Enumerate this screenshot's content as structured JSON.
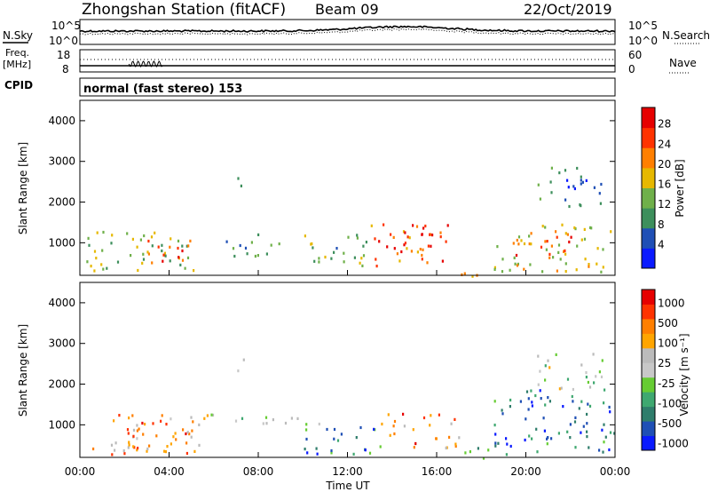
{
  "header": {
    "station": "Zhongshan Station (fitACF)",
    "beam": "Beam 09",
    "date": "22/Oct/2019"
  },
  "noise_panel": {
    "left_label": "N.Sky",
    "left_top_tick": "10^5",
    "left_bottom_tick": "10^0",
    "right_label": "N.Search",
    "right_top_tick": "10^5",
    "right_bottom_tick": "10^0"
  },
  "freq_panel": {
    "left_label_1": "Freq.",
    "left_label_2": "[MHz]",
    "left_top_tick": "18",
    "left_bottom_tick": "8",
    "right_label": "Nave",
    "right_top_tick": "60",
    "right_bottom_tick": "0",
    "cpid_label": "CPID"
  },
  "mode_text": "normal (fast stereo) 153",
  "colors": {
    "power_scale": [
      "#0a1aff",
      "#1f4fb5",
      "#3d8f5c",
      "#6fb04a",
      "#e6b800",
      "#ff7f00",
      "#ff3300",
      "#e60000"
    ],
    "velocity_scale": [
      "#0a1aff",
      "#1f4fb5",
      "#2f7d6b",
      "#3fa870",
      "#66cc33",
      "#c8c8c8",
      "#bbbbbb",
      "#ffa500",
      "#ff7f00",
      "#ff3300",
      "#e60000"
    ]
  },
  "chart_data": [
    {
      "type": "heatmap",
      "ylabel": "Slant Range [km]",
      "ylim": [
        200,
        4500
      ],
      "yticks": [
        "1000",
        "2000",
        "3000",
        "4000"
      ],
      "xlim_hours": [
        0,
        24
      ],
      "colorbar": {
        "label": "Power [dB]",
        "ticks": [
          "4",
          "8",
          "12",
          "16",
          "20",
          "24",
          "28"
        ],
        "range": [
          0,
          32
        ]
      },
      "blobs": [
        {
          "t0": 0.2,
          "t1": 5.5,
          "r0": 300,
          "r1": 1300,
          "level": 0.45
        },
        {
          "t0": 2.5,
          "t1": 5.0,
          "r0": 500,
          "r1": 1100,
          "level": 0.8
        },
        {
          "t0": 6.5,
          "t1": 9.0,
          "r0": 700,
          "r1": 1300,
          "level": 0.3
        },
        {
          "t0": 10.0,
          "t1": 13.0,
          "r0": 400,
          "r1": 1300,
          "level": 0.4
        },
        {
          "t0": 13.0,
          "t1": 16.5,
          "r0": 300,
          "r1": 1500,
          "level": 0.75
        },
        {
          "t0": 14.5,
          "t1": 16.0,
          "r0": 700,
          "r1": 1300,
          "level": 0.95
        },
        {
          "t0": 16.5,
          "t1": 18.0,
          "r0": 200,
          "r1": 500,
          "level": 0.7
        },
        {
          "t0": 18.5,
          "t1": 24.0,
          "r0": 300,
          "r1": 1500,
          "level": 0.55
        },
        {
          "t0": 19.5,
          "t1": 22.0,
          "r0": 700,
          "r1": 1300,
          "level": 0.75
        },
        {
          "t0": 20.5,
          "t1": 23.5,
          "r0": 1900,
          "r1": 2900,
          "level": 0.25
        },
        {
          "t0": 6.8,
          "t1": 7.5,
          "r0": 2300,
          "r1": 2700,
          "level": 0.25
        }
      ]
    },
    {
      "type": "heatmap",
      "ylabel": "Slant Range [km]",
      "xlabel": "Time UT",
      "ylim": [
        200,
        4500
      ],
      "yticks": [
        "1000",
        "2000",
        "3000",
        "4000"
      ],
      "xticks": [
        "00:00",
        "04:00",
        "08:00",
        "12:00",
        "16:00",
        "20:00",
        "00:00"
      ],
      "xlim_hours": [
        0,
        24
      ],
      "colorbar": {
        "label": "Velocity [m s⁻¹]",
        "ticks": [
          "1000",
          "500",
          "100",
          "25",
          "-25",
          "-100",
          "-500",
          "-1000"
        ],
        "range": [
          -1000,
          1000
        ]
      },
      "blobs": [
        {
          "t0": 0.2,
          "t1": 5.5,
          "r0": 300,
          "r1": 1300,
          "level": 0.7
        },
        {
          "t0": 2.0,
          "t1": 5.0,
          "r0": 500,
          "r1": 1100,
          "level": 0.8
        },
        {
          "t0": 5.5,
          "t1": 11.0,
          "r0": 1000,
          "r1": 1300,
          "level": 0.5
        },
        {
          "t0": 10.0,
          "t1": 13.5,
          "r0": 300,
          "r1": 1100,
          "level": 0.25
        },
        {
          "t0": 13.5,
          "t1": 17.0,
          "r0": 400,
          "r1": 1300,
          "level": 0.75
        },
        {
          "t0": 16.5,
          "t1": 18.5,
          "r0": 200,
          "r1": 500,
          "level": 0.3
        },
        {
          "t0": 18.5,
          "t1": 24.0,
          "r0": 300,
          "r1": 1900,
          "level": 0.2
        },
        {
          "t0": 20.5,
          "t1": 23.5,
          "r0": 1900,
          "r1": 2800,
          "level": 0.5
        },
        {
          "t0": 6.8,
          "t1": 7.5,
          "r0": 2300,
          "r1": 2700,
          "level": 0.5
        }
      ]
    }
  ]
}
